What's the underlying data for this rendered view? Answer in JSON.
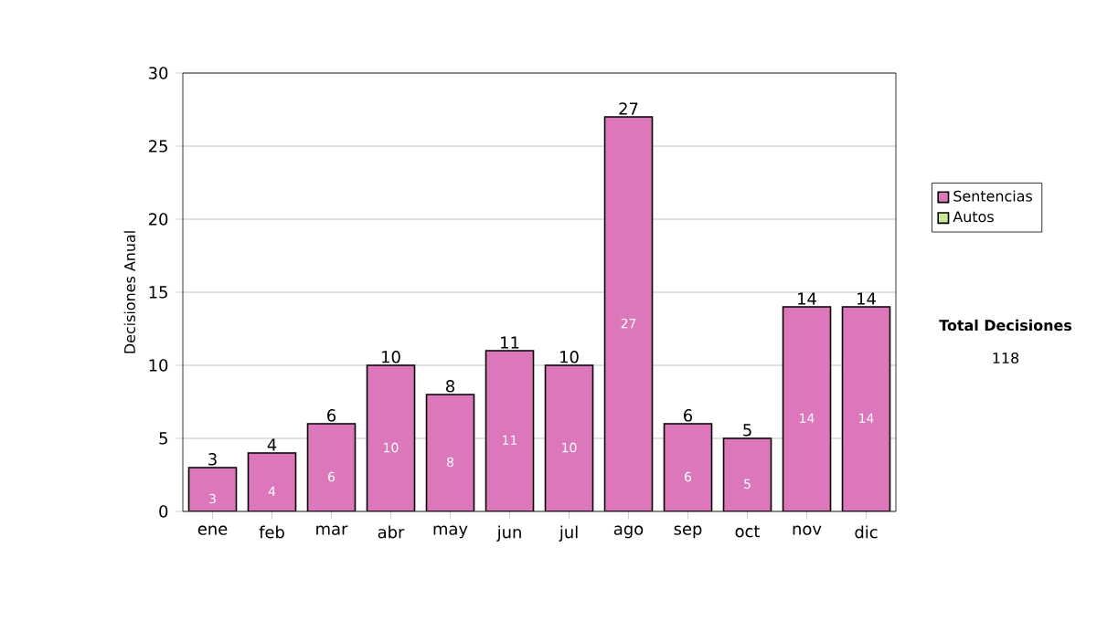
{
  "chart_data": {
    "type": "bar",
    "stacked": true,
    "ylabel": "Decisiones Anual",
    "categories": [
      "ene",
      "feb",
      "mar",
      "abr",
      "may",
      "jun",
      "jul",
      "ago",
      "sep",
      "oct",
      "nov",
      "dic"
    ],
    "series": [
      {
        "name": "Sentencias",
        "color": "#dd77bb",
        "values": [
          3,
          4,
          6,
          10,
          8,
          11,
          10,
          27,
          6,
          5,
          14,
          14
        ],
        "value_labels": [
          "3",
          "4",
          "6",
          "10",
          "8",
          "11",
          "10",
          "27",
          "6",
          "5",
          "14",
          "14"
        ]
      },
      {
        "name": "Autos",
        "color": "#cce699",
        "values": [
          0,
          0,
          0,
          0,
          0,
          0,
          0,
          0,
          0,
          0,
          0,
          0
        ]
      }
    ],
    "totals": [
      "3",
      "4",
      "6",
      "10",
      "8",
      "11",
      "10",
      "27",
      "6",
      "5",
      "14",
      "14"
    ],
    "ylim": [
      0,
      30
    ],
    "yticks": [
      0,
      5,
      10,
      15,
      20,
      25,
      30
    ],
    "grid": "y",
    "legend": "right",
    "annotations": [
      "Total Decisiones",
      "118"
    ]
  }
}
